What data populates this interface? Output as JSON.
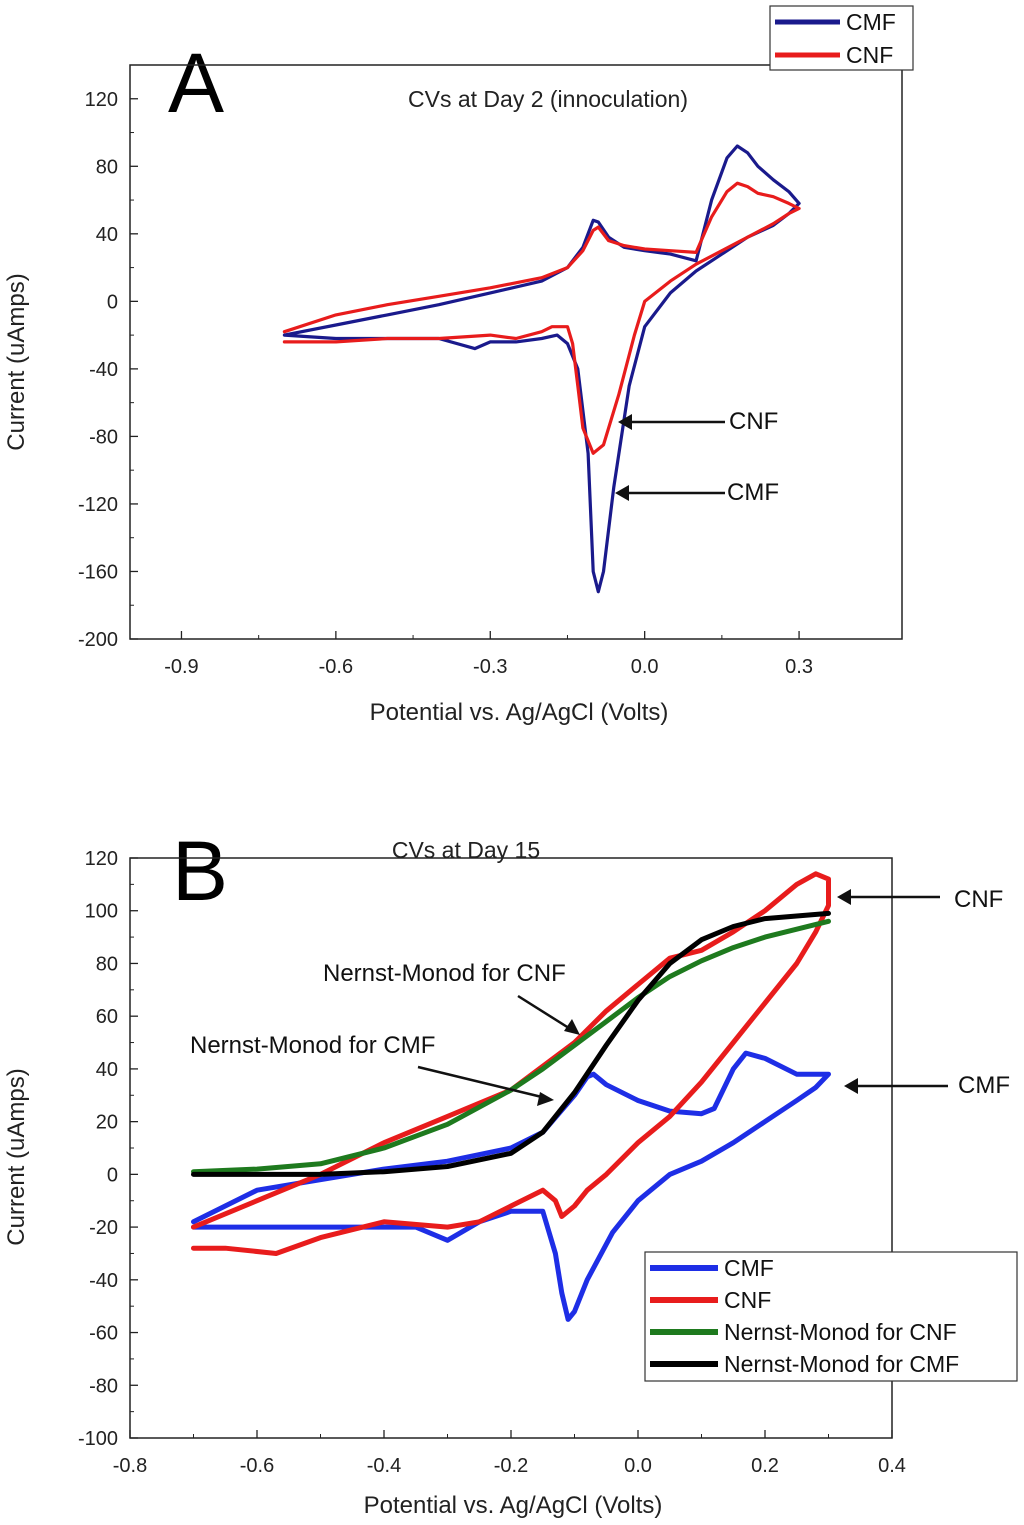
{
  "chart_data": [
    {
      "type": "line",
      "panel": "A",
      "title": "CVs at Day 2 (innoculation)",
      "xlabel": "Potential vs. Ag/AgCl (Volts)",
      "ylabel": "Current (uAmps)",
      "xlim": [
        -1.0,
        0.5
      ],
      "ylim": [
        -200,
        140
      ],
      "xticks": [
        -0.9,
        -0.6,
        -0.3,
        0.0,
        0.3
      ],
      "xtick_labels": [
        "-0.9",
        "-0.6",
        "-0.3",
        "0.0",
        "0.3"
      ],
      "yticks": [
        -200,
        -160,
        -120,
        -80,
        -40,
        0,
        40,
        80,
        120
      ],
      "ytick_labels": [
        "-200",
        "-160",
        "-120",
        "-80",
        "-40",
        "0",
        "40",
        "80",
        "120"
      ],
      "legend": {
        "position": "top-right",
        "entries": [
          "CMF",
          "CNF"
        ]
      },
      "series": [
        {
          "name": "CMF",
          "color": "#1a1a8c",
          "x": [
            -0.7,
            -0.6,
            -0.5,
            -0.4,
            -0.3,
            -0.2,
            -0.15,
            -0.12,
            -0.1,
            -0.09,
            -0.07,
            -0.04,
            0.0,
            0.05,
            0.1,
            0.13,
            0.16,
            0.18,
            0.2,
            0.22,
            0.25,
            0.28,
            0.3,
            0.28,
            0.25,
            0.2,
            0.15,
            0.1,
            0.05,
            0.0,
            -0.03,
            -0.06,
            -0.08,
            -0.09,
            -0.1,
            -0.11,
            -0.13,
            -0.15,
            -0.17,
            -0.2,
            -0.25,
            -0.3,
            -0.33,
            -0.4,
            -0.5,
            -0.6,
            -0.7
          ],
          "y": [
            -20,
            -14,
            -8,
            -2,
            5,
            12,
            20,
            32,
            48,
            47,
            38,
            32,
            30,
            28,
            24,
            60,
            85,
            92,
            88,
            80,
            72,
            65,
            58,
            52,
            45,
            38,
            28,
            18,
            5,
            -15,
            -50,
            -110,
            -160,
            -172,
            -160,
            -90,
            -40,
            -25,
            -20,
            -22,
            -24,
            -24,
            -28,
            -22,
            -22,
            -22,
            -20
          ]
        },
        {
          "name": "CNF",
          "color": "#e81c1c",
          "x": [
            -0.7,
            -0.6,
            -0.5,
            -0.4,
            -0.3,
            -0.2,
            -0.15,
            -0.12,
            -0.1,
            -0.09,
            -0.07,
            -0.04,
            0.0,
            0.05,
            0.1,
            0.13,
            0.16,
            0.18,
            0.2,
            0.22,
            0.25,
            0.28,
            0.3,
            0.28,
            0.25,
            0.2,
            0.15,
            0.1,
            0.05,
            0.0,
            -0.02,
            -0.05,
            -0.08,
            -0.1,
            -0.12,
            -0.13,
            -0.14,
            -0.15,
            -0.18,
            -0.2,
            -0.25,
            -0.3,
            -0.4,
            -0.5,
            -0.6,
            -0.7
          ],
          "y": [
            -18,
            -8,
            -2,
            3,
            8,
            14,
            20,
            30,
            42,
            44,
            36,
            33,
            31,
            30,
            29,
            50,
            65,
            70,
            68,
            64,
            62,
            58,
            55,
            52,
            46,
            38,
            30,
            22,
            12,
            0,
            -20,
            -55,
            -85,
            -90,
            -75,
            -50,
            -25,
            -15,
            -15,
            -18,
            -22,
            -20,
            -22,
            -22,
            -24,
            -24
          ]
        }
      ],
      "annotations": [
        "CNF",
        "CMF"
      ]
    },
    {
      "type": "line",
      "panel": "B",
      "title": "CVs at Day 15",
      "xlabel": "Potential vs. Ag/AgCl (Volts)",
      "ylabel": "Current (uAmps)",
      "xlim": [
        -0.8,
        0.4
      ],
      "ylim": [
        -100,
        120
      ],
      "xticks": [
        -0.8,
        -0.6,
        -0.4,
        -0.2,
        0.0,
        0.2,
        0.4
      ],
      "xtick_labels": [
        "-0.8",
        "-0.6",
        "-0.4",
        "-0.2",
        "0.0",
        "0.2",
        "0.4"
      ],
      "yticks": [
        -100,
        -80,
        -60,
        -40,
        -20,
        0,
        20,
        40,
        60,
        80,
        100,
        120
      ],
      "ytick_labels": [
        "-100",
        "-80",
        "-60",
        "-40",
        "-20",
        "0",
        "20",
        "40",
        "60",
        "80",
        "100",
        "120"
      ],
      "legend": {
        "position": "bottom-right",
        "entries": [
          "CMF",
          "CNF",
          "Nernst-Monod for CNF",
          "Nernst-Monod for CMF"
        ]
      },
      "series": [
        {
          "name": "CMF",
          "color": "#1e2ee6",
          "x": [
            -0.7,
            -0.6,
            -0.5,
            -0.4,
            -0.3,
            -0.2,
            -0.15,
            -0.1,
            -0.08,
            -0.07,
            -0.05,
            0.0,
            0.05,
            0.1,
            0.12,
            0.15,
            0.17,
            0.2,
            0.25,
            0.3,
            0.28,
            0.25,
            0.2,
            0.15,
            0.1,
            0.05,
            0.0,
            -0.04,
            -0.08,
            -0.1,
            -0.11,
            -0.12,
            -0.13,
            -0.15,
            -0.2,
            -0.25,
            -0.3,
            -0.35,
            -0.4,
            -0.5,
            -0.6,
            -0.7
          ],
          "y": [
            -18,
            -6,
            -2,
            2,
            5,
            10,
            16,
            30,
            37,
            38,
            34,
            28,
            24,
            23,
            25,
            40,
            46,
            44,
            38,
            38,
            33,
            28,
            20,
            12,
            5,
            0,
            -10,
            -22,
            -40,
            -52,
            -55,
            -45,
            -30,
            -14,
            -14,
            -18,
            -25,
            -20,
            -20,
            -20,
            -20,
            -20
          ]
        },
        {
          "name": "CNF",
          "color": "#e81c1c",
          "x": [
            -0.7,
            -0.6,
            -0.5,
            -0.4,
            -0.3,
            -0.2,
            -0.1,
            -0.05,
            0.0,
            0.05,
            0.1,
            0.15,
            0.2,
            0.25,
            0.28,
            0.3,
            0.3,
            0.28,
            0.25,
            0.2,
            0.15,
            0.1,
            0.05,
            0.0,
            -0.05,
            -0.08,
            -0.1,
            -0.12,
            -0.13,
            -0.15,
            -0.2,
            -0.25,
            -0.3,
            -0.4,
            -0.5,
            -0.57,
            -0.65,
            -0.7
          ],
          "y": [
            -20,
            -10,
            0,
            12,
            22,
            32,
            50,
            62,
            72,
            82,
            85,
            92,
            100,
            110,
            114,
            112,
            102,
            92,
            80,
            65,
            50,
            35,
            22,
            12,
            0,
            -6,
            -12,
            -16,
            -10,
            -6,
            -12,
            -18,
            -20,
            -18,
            -24,
            -30,
            -28,
            -28
          ]
        },
        {
          "name": "Nernst-Monod for CNF",
          "color": "#1e7a1e",
          "x": [
            -0.7,
            -0.6,
            -0.5,
            -0.4,
            -0.3,
            -0.2,
            -0.15,
            -0.1,
            -0.05,
            0.0,
            0.05,
            0.1,
            0.15,
            0.2,
            0.25,
            0.3
          ],
          "y": [
            1,
            2,
            4,
            10,
            19,
            32,
            40,
            49,
            58,
            67,
            75,
            81,
            86,
            90,
            93,
            96
          ]
        },
        {
          "name": "Nernst-Monod for CMF",
          "color": "#000000",
          "x": [
            -0.7,
            -0.6,
            -0.5,
            -0.4,
            -0.3,
            -0.2,
            -0.15,
            -0.1,
            -0.05,
            0.0,
            0.05,
            0.1,
            0.15,
            0.2,
            0.25,
            0.3
          ],
          "y": [
            0,
            0,
            0,
            1,
            3,
            8,
            16,
            31,
            49,
            66,
            80,
            89,
            94,
            97,
            98,
            99
          ]
        }
      ],
      "annotations": [
        "CNF",
        "CMF",
        "Nernst-Monod for CNF",
        "Nernst-Monod for CMF"
      ]
    }
  ]
}
